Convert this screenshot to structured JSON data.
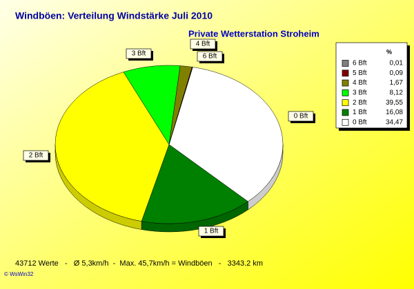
{
  "chart_data": {
    "type": "pie",
    "title": "Windböen: Verteilung Windstärke  Juli 2010",
    "subtitle": "Private Wetterstation Stroheim",
    "legend_header": "%",
    "categories": [
      "6 Bft",
      "5 Bft",
      "4 Bft",
      "3 Bft",
      "2 Bft",
      "1 Bft",
      "0 Bft"
    ],
    "values": [
      0.01,
      0.09,
      1.67,
      8.12,
      39.55,
      16.08,
      34.47
    ],
    "value_labels": [
      "0,01",
      "0,09",
      "1,67",
      "8,12",
      "39,55",
      "16,08",
      "34,47"
    ],
    "colors": [
      "#808080",
      "#800000",
      "#808000",
      "#00ff00",
      "#ffff00",
      "#008000",
      "#ffffff"
    ],
    "legend": "top-right",
    "footer": "43712 Werte   -   Ø 5,3km/h  -  Max. 45,7km/h = Windböen   -   3343.2 km",
    "credit": "© WsWin32"
  }
}
